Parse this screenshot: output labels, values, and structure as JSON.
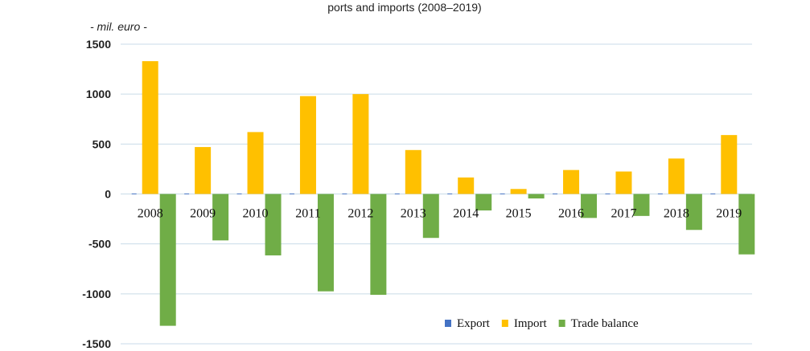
{
  "chart_data": {
    "type": "bar",
    "title": "ports and imports (2008–2019)",
    "unit_label": "- mil. euro -",
    "categories": [
      "2008",
      "2009",
      "2010",
      "2011",
      "2012",
      "2013",
      "2014",
      "2015",
      "2016",
      "2017",
      "2018",
      "2019"
    ],
    "series": [
      {
        "name": "Export",
        "color": "#4472c4",
        "values": [
          5,
          5,
          5,
          5,
          5,
          5,
          5,
          5,
          5,
          5,
          5,
          5
        ]
      },
      {
        "name": "Import",
        "color": "#ffc000",
        "values": [
          1330,
          470,
          620,
          980,
          1000,
          440,
          165,
          50,
          240,
          225,
          355,
          590
        ]
      },
      {
        "name": "Trade balance",
        "color": "#70ad47",
        "values": [
          -1320,
          -465,
          -615,
          -975,
          -1010,
          -440,
          -165,
          -45,
          -240,
          -220,
          -360,
          -605
        ]
      }
    ],
    "ylim": [
      -1500,
      1500
    ],
    "yticks": [
      1500,
      1000,
      500,
      0,
      -500,
      -1000,
      -1500
    ],
    "ytick_labels": [
      "1500",
      "1000",
      "500",
      "0",
      "-500",
      "-1000",
      "-1500"
    ],
    "grid": true,
    "legend_position": "bottom-right"
  }
}
